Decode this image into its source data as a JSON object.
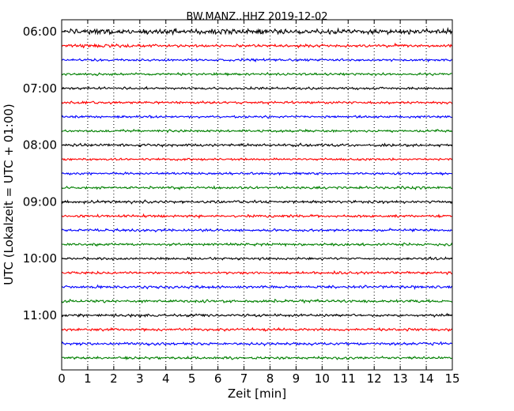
{
  "chart_data": {
    "type": "line",
    "title": "BW.MANZ..HHZ 2019-12-02",
    "xlabel": "Zeit  [min]",
    "ylabel": "UTC (Lokalzeit = UTC + 01:00)",
    "xlim": [
      0,
      15
    ],
    "x_ticks": [
      "0",
      "1",
      "2",
      "3",
      "4",
      "5",
      "6",
      "7",
      "8",
      "9",
      "10",
      "11",
      "12",
      "13",
      "14",
      "15"
    ],
    "y_ticks": [
      "06:00",
      "07:00",
      "08:00",
      "09:00",
      "10:00",
      "11:00"
    ],
    "grid": "vertical-dotted",
    "traces": [
      {
        "start": "06:00",
        "color": "#000000",
        "amplitude": 2.6
      },
      {
        "start": "06:15",
        "color": "#ff0000",
        "amplitude": 1.6
      },
      {
        "start": "06:30",
        "color": "#0000ff",
        "amplitude": 1.2
      },
      {
        "start": "06:45",
        "color": "#008000",
        "amplitude": 1.2
      },
      {
        "start": "07:00",
        "color": "#000000",
        "amplitude": 1.2
      },
      {
        "start": "07:15",
        "color": "#ff0000",
        "amplitude": 1.3
      },
      {
        "start": "07:30",
        "color": "#0000ff",
        "amplitude": 1.2
      },
      {
        "start": "07:45",
        "color": "#008000",
        "amplitude": 1.2
      },
      {
        "start": "08:00",
        "color": "#000000",
        "amplitude": 1.4
      },
      {
        "start": "08:15",
        "color": "#ff0000",
        "amplitude": 1.1
      },
      {
        "start": "08:30",
        "color": "#0000ff",
        "amplitude": 1.2
      },
      {
        "start": "08:45",
        "color": "#008000",
        "amplitude": 1.3
      },
      {
        "start": "09:00",
        "color": "#000000",
        "amplitude": 1.4
      },
      {
        "start": "09:15",
        "color": "#ff0000",
        "amplitude": 1.3
      },
      {
        "start": "09:30",
        "color": "#0000ff",
        "amplitude": 1.3
      },
      {
        "start": "09:45",
        "color": "#008000",
        "amplitude": 1.3
      },
      {
        "start": "10:00",
        "color": "#000000",
        "amplitude": 1.2
      },
      {
        "start": "10:15",
        "color": "#ff0000",
        "amplitude": 1.3
      },
      {
        "start": "10:30",
        "color": "#0000ff",
        "amplitude": 1.4
      },
      {
        "start": "10:45",
        "color": "#008000",
        "amplitude": 1.4
      },
      {
        "start": "11:00",
        "color": "#000000",
        "amplitude": 1.3
      },
      {
        "start": "11:15",
        "color": "#ff0000",
        "amplitude": 1.3
      },
      {
        "start": "11:30",
        "color": "#0000ff",
        "amplitude": 1.4
      },
      {
        "start": "11:45",
        "color": "#008000",
        "amplitude": 1.3
      }
    ]
  }
}
